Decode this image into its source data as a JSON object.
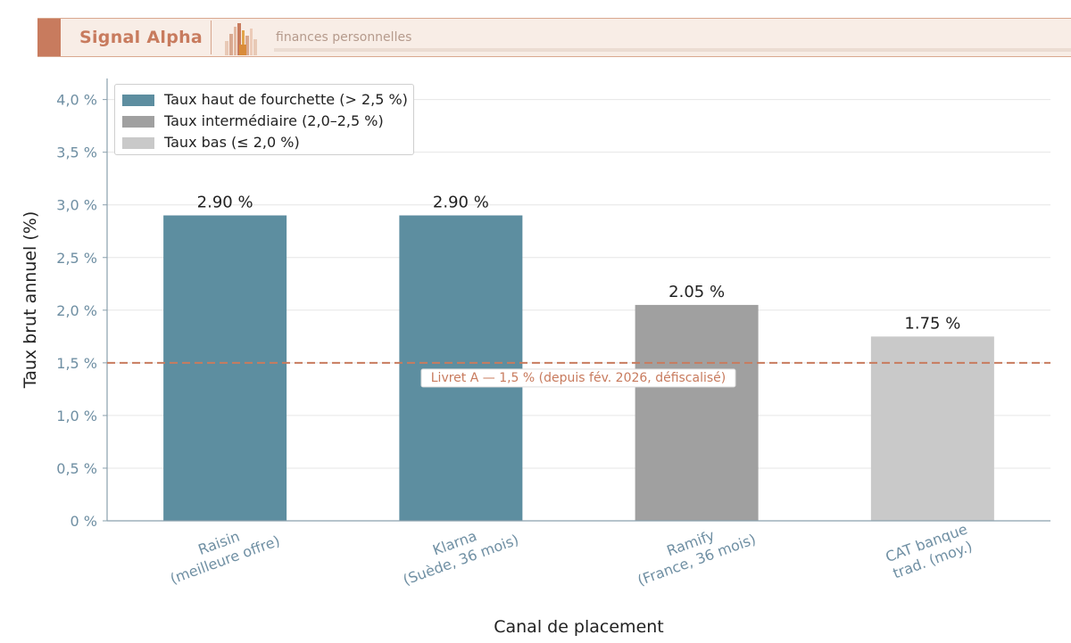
{
  "header": {
    "brand": "Signal Alpha",
    "tagline": "finances personnelles",
    "accent_color": "#c87b5e",
    "logo_icon": "bar-city-icon"
  },
  "chart_data": {
    "type": "bar",
    "title": "",
    "xlabel": "Canal de placement",
    "ylabel": "Taux brut annuel (%)",
    "ylim": [
      0,
      4.2
    ],
    "y_ticks": [
      0,
      0.5,
      1.0,
      1.5,
      2.0,
      2.5,
      3.0,
      3.5,
      4.0
    ],
    "y_tick_labels": [
      "0 %",
      "0,5 %",
      "1,0 %",
      "1,5 %",
      "2,0 %",
      "2,5 %",
      "3,0 %",
      "3,5 %",
      "4,0 %"
    ],
    "grid": "horizontal",
    "legend_position": "top-left",
    "categories": [
      [
        "Raisin",
        "(meilleure offre)"
      ],
      [
        "Klarna",
        "(Suède, 36 mois)"
      ],
      [
        "Ramify",
        "(France, 36 mois)"
      ],
      [
        "CAT banque",
        "trad. (moy.)"
      ]
    ],
    "values": [
      2.9,
      2.9,
      2.05,
      1.75
    ],
    "value_labels": [
      "2.90 %",
      "2.90 %",
      "2.05 %",
      "1.75 %"
    ],
    "bar_groups": [
      0,
      0,
      1,
      2
    ],
    "legend": [
      {
        "label": "Taux haut de fourchette (> 2,5 %)",
        "color": "#5d8ea0"
      },
      {
        "label": "Taux intermédiaire (2,0–2,5 %)",
        "color": "#a0a0a0"
      },
      {
        "label": "Taux bas (≤ 2,0 %)",
        "color": "#c9c9c9"
      }
    ],
    "reference_line": {
      "value": 1.5,
      "label": "Livret A — 1,5 % (depuis fév. 2026, défiscalisé)",
      "color": "#c87b5e"
    }
  }
}
